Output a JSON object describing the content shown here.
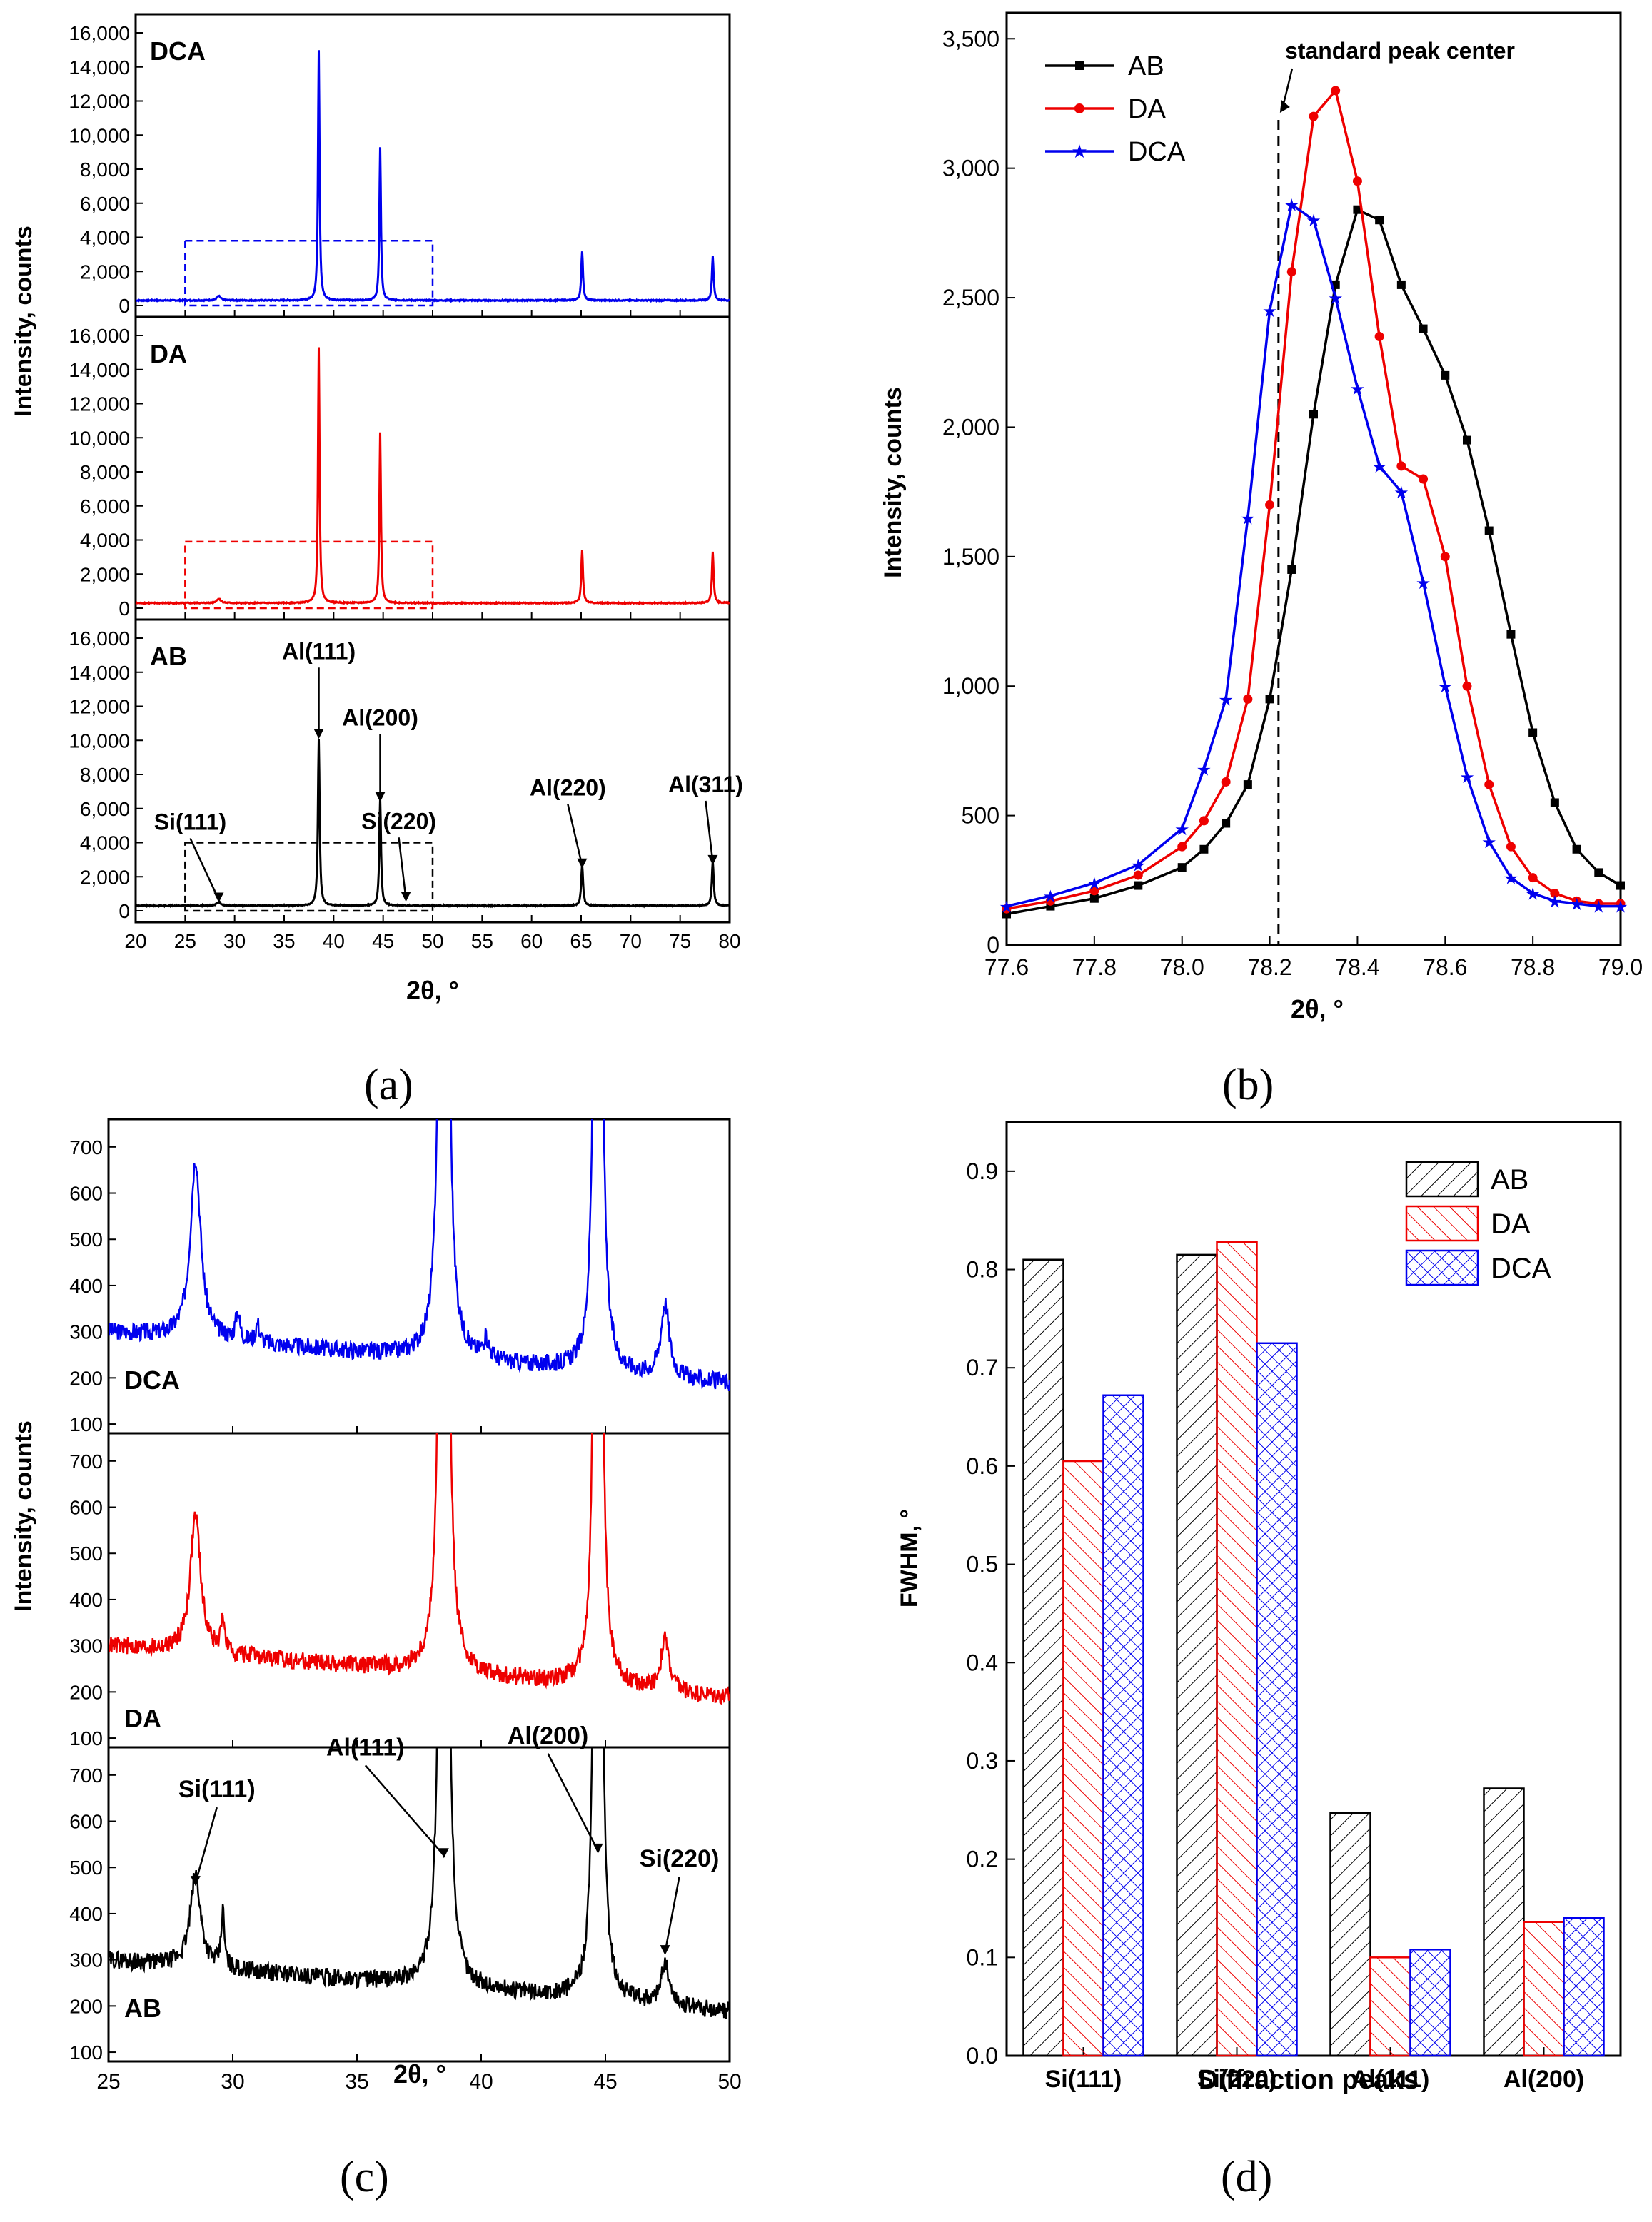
{
  "figure": {
    "panel_labels": [
      "(a)",
      "(b)",
      "(c)",
      "(d)"
    ],
    "common_xlabel": "2θ, °",
    "common_ylabel": "Intensity, counts"
  },
  "chart_data": [
    {
      "id": "a",
      "type": "line",
      "xlabel": "2θ, °",
      "ylabel": "Intensity, counts",
      "xlim": [
        20,
        80
      ],
      "xticks": [
        20,
        25,
        30,
        35,
        40,
        45,
        50,
        55,
        60,
        65,
        70,
        75,
        80
      ],
      "ylim": [
        0,
        16000
      ],
      "yticks": [
        0,
        2000,
        4000,
        6000,
        8000,
        10000,
        12000,
        14000,
        16000
      ],
      "ytick_labels": [
        "0",
        "2,000",
        "4,000",
        "6,000",
        "8,000",
        "10,000",
        "12,000",
        "14,000",
        "16,000"
      ],
      "grid": false,
      "stacked_panels": [
        {
          "label": "DCA",
          "color": "#0000ee",
          "baseline": 300,
          "peaks": [
            [
              28.4,
              250,
              0.5
            ],
            [
              38.5,
              14700,
              0.18
            ],
            [
              44.7,
              9000,
              0.18
            ],
            [
              65.1,
              2900,
              0.2
            ],
            [
              78.3,
              2600,
              0.2
            ]
          ],
          "zoom_box": {
            "x": [
              25,
              50
            ],
            "y": [
              0,
              3800
            ]
          }
        },
        {
          "label": "DA",
          "color": "#ee0000",
          "baseline": 300,
          "peaks": [
            [
              28.4,
              250,
              0.5
            ],
            [
              38.5,
              15000,
              0.18
            ],
            [
              44.7,
              10000,
              0.18
            ],
            [
              65.1,
              3100,
              0.2
            ],
            [
              78.3,
              3000,
              0.2
            ]
          ],
          "zoom_box": {
            "x": [
              25,
              50
            ],
            "y": [
              0,
              3900
            ]
          }
        },
        {
          "label": "AB",
          "color": "#000000",
          "baseline": 300,
          "peaks": [
            [
              28.4,
              220,
              0.5
            ],
            [
              38.5,
              9800,
              0.2
            ],
            [
              44.7,
              6300,
              0.2
            ],
            [
              65.1,
              2400,
              0.22
            ],
            [
              78.3,
              2600,
              0.22
            ]
          ],
          "zoom_box": {
            "x": [
              25,
              50
            ],
            "y": [
              0,
              4000
            ]
          }
        }
      ],
      "annotations": [
        {
          "text": "Al(111)",
          "x": 38.5,
          "y": 10000
        },
        {
          "text": "Al(200)",
          "x": 44.7,
          "y": 6300
        },
        {
          "text": "Si(111)",
          "x": 28.4,
          "y": 400
        },
        {
          "text": "Si(220)",
          "x": 47.3,
          "y": 450
        },
        {
          "text": "Al(220)",
          "x": 65.1,
          "y": 2400
        },
        {
          "text": "Al(311)",
          "x": 78.3,
          "y": 2600
        }
      ]
    },
    {
      "id": "b",
      "type": "line",
      "xlabel": "2θ, °",
      "ylabel": "Intensity, counts",
      "xlim": [
        77.6,
        79.0
      ],
      "xticks": [
        77.6,
        77.8,
        78.0,
        78.2,
        78.4,
        78.6,
        78.8,
        79.0
      ],
      "xtick_labels": [
        "77.6",
        "77.8",
        "78.0",
        "78.2",
        "78.4",
        "78.6",
        "78.8",
        "79.0"
      ],
      "ylim": [
        0,
        3600
      ],
      "yticks": [
        0,
        500,
        1000,
        1500,
        2000,
        2500,
        3000,
        3500
      ],
      "ytick_labels": [
        "0",
        "500",
        "1,000",
        "1,500",
        "2,000",
        "2,500",
        "3,000",
        "3,500"
      ],
      "legend": "top-left",
      "grid": false,
      "series": [
        {
          "name": "AB",
          "color": "#000000",
          "marker": "square",
          "x": [
            77.6,
            77.7,
            77.8,
            77.9,
            78.0,
            78.05,
            78.1,
            78.15,
            78.2,
            78.25,
            78.3,
            78.35,
            78.4,
            78.45,
            78.5,
            78.55,
            78.6,
            78.65,
            78.7,
            78.75,
            78.8,
            78.85,
            78.9,
            78.95,
            79.0
          ],
          "y": [
            120,
            150,
            180,
            230,
            300,
            370,
            470,
            620,
            950,
            1450,
            2050,
            2550,
            2840,
            2800,
            2550,
            2380,
            2200,
            1950,
            1600,
            1200,
            820,
            550,
            370,
            280,
            230
          ]
        },
        {
          "name": "DA",
          "color": "#ee0000",
          "marker": "circle",
          "x": [
            77.6,
            77.7,
            77.8,
            77.9,
            78.0,
            78.05,
            78.1,
            78.15,
            78.2,
            78.25,
            78.3,
            78.35,
            78.4,
            78.45,
            78.5,
            78.55,
            78.6,
            78.65,
            78.7,
            78.75,
            78.8,
            78.85,
            78.9,
            78.95,
            79.0
          ],
          "y": [
            140,
            170,
            210,
            270,
            380,
            480,
            630,
            950,
            1700,
            2600,
            3200,
            3300,
            2950,
            2350,
            1850,
            1800,
            1500,
            1000,
            620,
            380,
            260,
            200,
            170,
            160,
            160
          ]
        },
        {
          "name": "DCA",
          "color": "#0000ee",
          "marker": "star",
          "x": [
            77.6,
            77.7,
            77.8,
            77.9,
            78.0,
            78.05,
            78.1,
            78.15,
            78.2,
            78.25,
            78.3,
            78.35,
            78.4,
            78.45,
            78.5,
            78.55,
            78.6,
            78.65,
            78.7,
            78.75,
            78.8,
            78.85,
            78.9,
            78.95,
            79.0
          ],
          "y": [
            150,
            190,
            240,
            310,
            450,
            680,
            950,
            1650,
            2450,
            2860,
            2800,
            2500,
            2150,
            1850,
            1750,
            1400,
            1000,
            650,
            400,
            260,
            200,
            170,
            160,
            150,
            150
          ]
        }
      ],
      "annotations": [
        {
          "text": "standard peak center",
          "x": 78.22
        }
      ]
    },
    {
      "id": "c",
      "type": "line",
      "xlabel": "2θ, °",
      "ylabel": "Intensity, counts",
      "xlim": [
        25,
        50
      ],
      "xticks": [
        25,
        30,
        35,
        40,
        45,
        50
      ],
      "ylim": [
        80,
        760
      ],
      "yticks": [
        100,
        200,
        300,
        400,
        500,
        600,
        700
      ],
      "grid": false,
      "stacked_panels": [
        {
          "label": "DCA",
          "color": "#0000ee",
          "peaks": [
            [
              28.5,
              390,
              0.5
            ],
            [
              30.2,
              60,
              0.2
            ],
            [
              31.0,
              40,
              0.2
            ],
            [
              38.5,
              8000,
              0.15
            ],
            [
              40.2,
              40,
              0.3
            ],
            [
              44.7,
              6000,
              0.15
            ],
            [
              47.4,
              160,
              0.4
            ]
          ]
        },
        {
          "label": "DA",
          "color": "#ee0000",
          "peaks": [
            [
              28.5,
              300,
              0.5
            ],
            [
              29.6,
              80,
              0.15
            ],
            [
              38.5,
              8000,
              0.15
            ],
            [
              44.7,
              6000,
              0.15
            ],
            [
              47.4,
              110,
              0.4
            ]
          ]
        },
        {
          "label": "AB",
          "color": "#000000",
          "peaks": [
            [
              28.5,
              200,
              0.5
            ],
            [
              29.6,
              120,
              0.15
            ],
            [
              38.5,
              8000,
              0.15
            ],
            [
              44.7,
              6000,
              0.15
            ],
            [
              47.4,
              90,
              0.4
            ]
          ]
        }
      ],
      "annotations": [
        {
          "text": "Si(111)",
          "x": 28.5,
          "y": 460
        },
        {
          "text": "Al(111)",
          "x": 38.5,
          "y": 520
        },
        {
          "text": "Al(200)",
          "x": 44.7,
          "y": 530
        },
        {
          "text": "Si(220)",
          "x": 47.4,
          "y": 310
        }
      ]
    },
    {
      "id": "d",
      "type": "bar",
      "xlabel": "Diffraction peaks",
      "ylabel": "FWHM, °",
      "categories": [
        "Si(111)",
        "Si(220)",
        "Al(111)",
        "Al(200)"
      ],
      "ylim": [
        0,
        0.95
      ],
      "yticks": [
        0.0,
        0.1,
        0.2,
        0.3,
        0.4,
        0.5,
        0.6,
        0.7,
        0.8,
        0.9
      ],
      "legend": "top-right",
      "grid": false,
      "series": [
        {
          "name": "AB",
          "color": "#000000",
          "hatch": "diagonal",
          "values": [
            0.81,
            0.815,
            0.247,
            0.272
          ]
        },
        {
          "name": "DA",
          "color": "#ee0000",
          "hatch": "diagonal",
          "values": [
            0.605,
            0.828,
            0.1,
            0.136
          ]
        },
        {
          "name": "DCA",
          "color": "#0000ee",
          "hatch": "crosshatch",
          "values": [
            0.672,
            0.725,
            0.108,
            0.14
          ]
        }
      ]
    }
  ]
}
